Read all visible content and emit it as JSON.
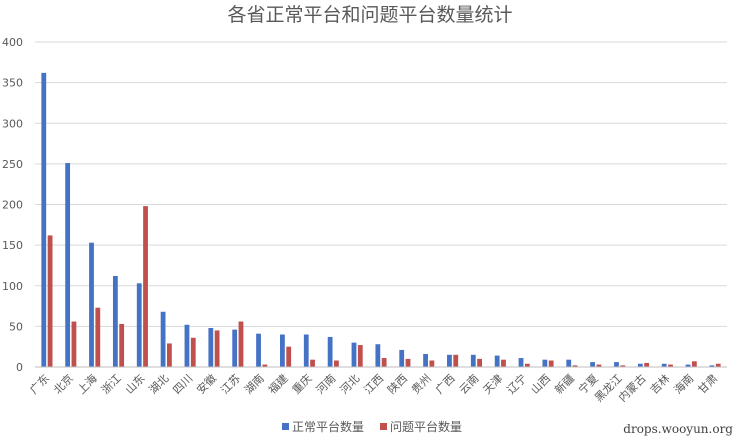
{
  "chart_data": {
    "type": "bar",
    "title": "各省正常平台和问题平台数量统计",
    "xlabel": "",
    "ylabel": "",
    "ylim": [
      0,
      400
    ],
    "yticks": [
      0,
      50,
      100,
      150,
      200,
      250,
      300,
      350,
      400
    ],
    "grid": true,
    "legend_position": "bottom",
    "categories": [
      "广东",
      "北京",
      "上海",
      "浙江",
      "山东",
      "湖北",
      "四川",
      "安徽",
      "江苏",
      "湖南",
      "福建",
      "重庆",
      "河南",
      "河北",
      "江西",
      "陕西",
      "贵州",
      "广西",
      "云南",
      "天津",
      "辽宁",
      "山西",
      "新疆",
      "宁夏",
      "黑龙江",
      "内蒙古",
      "吉林",
      "海南",
      "甘肃"
    ],
    "series": [
      {
        "name": "正常平台数量",
        "color": "#4472c4",
        "values": [
          362,
          251,
          153,
          112,
          103,
          68,
          52,
          48,
          46,
          41,
          40,
          40,
          37,
          30,
          28,
          21,
          16,
          15,
          15,
          14,
          11,
          9,
          9,
          6,
          6,
          4,
          4,
          3,
          2
        ]
      },
      {
        "name": "问题平台数量",
        "color": "#c0504d",
        "values": [
          162,
          56,
          73,
          53,
          198,
          29,
          36,
          45,
          56,
          3,
          25,
          9,
          8,
          27,
          11,
          10,
          8,
          15,
          10,
          9,
          4,
          8,
          2,
          3,
          2,
          5,
          3,
          7,
          4
        ]
      }
    ]
  },
  "watermark": "drops.wooyun.org"
}
